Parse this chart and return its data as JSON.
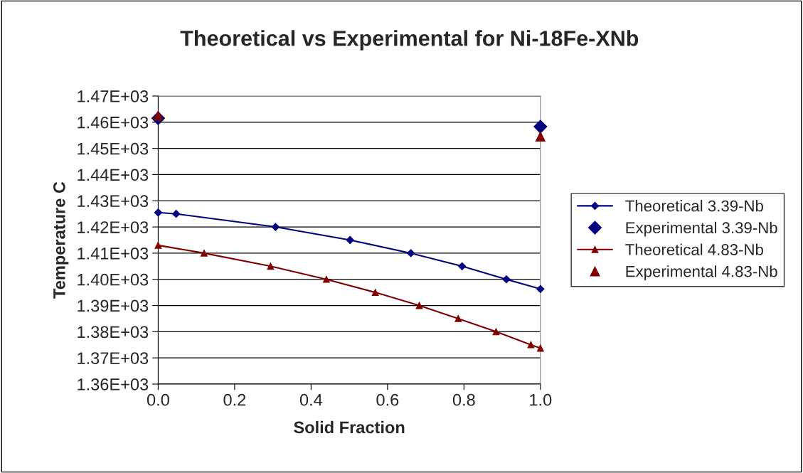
{
  "chart_data": {
    "type": "line",
    "title": "Theoretical vs Experimental for Ni-18Fe-XNb",
    "xlabel": "Solid Fraction",
    "ylabel": "Temperature C",
    "series": [
      {
        "name": "Theoretical 3.39-Nb",
        "color": "#000080",
        "marker": "diamond",
        "x": [
          0,
          0.047,
          0.307,
          0.502,
          0.661,
          0.795,
          0.911,
          1.0
        ],
        "values": [
          1425.5,
          1425,
          1420,
          1415,
          1410,
          1405,
          1400,
          1396.3
        ]
      },
      {
        "name": "Experimental 3.39-Nb",
        "type": "scatter",
        "color": "#000080",
        "marker": "diamond",
        "x": [
          0,
          1.0
        ],
        "values": [
          1461.5,
          1458.3
        ]
      },
      {
        "name": "Theoretical 4.83-Nb",
        "color": "#800000",
        "marker": "triangle",
        "x": [
          0,
          0.12,
          0.294,
          0.44,
          0.568,
          0.683,
          0.785,
          0.884,
          0.975,
          1.0
        ],
        "values": [
          1413,
          1410,
          1405,
          1400,
          1395,
          1390,
          1385,
          1380,
          1375,
          1373.7
        ]
      },
      {
        "name": "Experimental 4.83-Nb",
        "type": "scatter",
        "color": "#800000",
        "marker": "triangle",
        "x": [
          0,
          1.0
        ],
        "values": [
          1462.5,
          1454.5
        ]
      }
    ],
    "xlim": [
      0,
      1.0
    ],
    "xticks": [
      {
        "value": 0,
        "label": "0.0"
      },
      {
        "value": 0.2,
        "label": "0.2"
      },
      {
        "value": 0.4,
        "label": "0.4"
      },
      {
        "value": 0.6,
        "label": "0.6"
      },
      {
        "value": 0.8,
        "label": "0.8"
      },
      {
        "value": 1.0,
        "label": "1.0"
      }
    ],
    "ylim": [
      1360,
      1470
    ],
    "yticks": [
      {
        "value": 1360,
        "label": "1.36E+03"
      },
      {
        "value": 1370,
        "label": "1.37E+03"
      },
      {
        "value": 1380,
        "label": "1.38E+03"
      },
      {
        "value": 1390,
        "label": "1.39E+03"
      },
      {
        "value": 1400,
        "label": "1.40E+03"
      },
      {
        "value": 1410,
        "label": "1.41E+03"
      },
      {
        "value": 1420,
        "label": "1.42E+03"
      },
      {
        "value": 1430,
        "label": "1.43E+03"
      },
      {
        "value": 1440,
        "label": "1.44E+03"
      },
      {
        "value": 1450,
        "label": "1.45E+03"
      },
      {
        "value": 1460,
        "label": "1.46E+03"
      },
      {
        "value": 1470,
        "label": "1.47E+03"
      }
    ],
    "grid": "y",
    "legend": "right"
  }
}
